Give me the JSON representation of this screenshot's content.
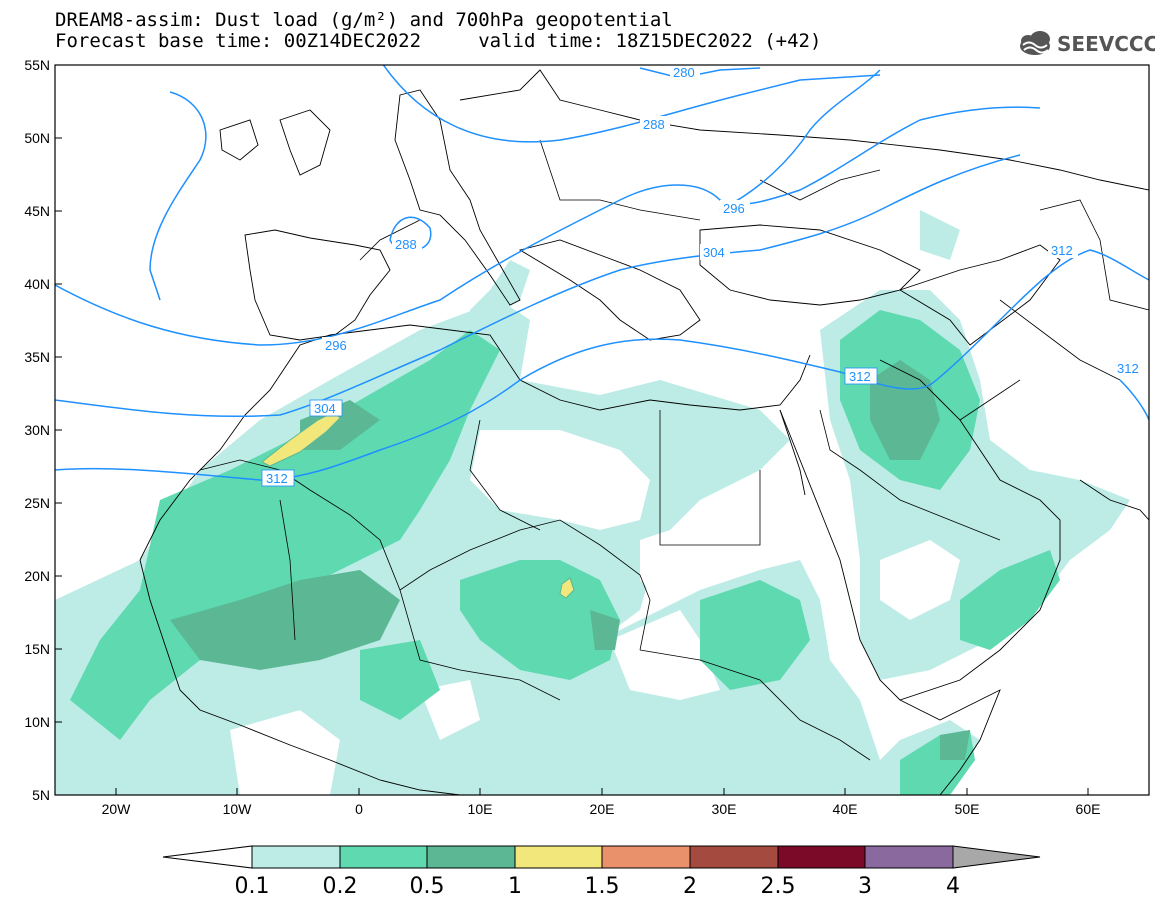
{
  "header": {
    "title_line1": "DREAM8-assim: Dust load (g/m²) and 700hPa geopotential",
    "title_line2": "Forecast base time: 00Z14DEC2022     valid time: 18Z15DEC2022 (+42)",
    "logo_text": "SEEVCCC"
  },
  "axes": {
    "lat_ticks": [
      "55N",
      "50N",
      "45N",
      "40N",
      "35N",
      "30N",
      "25N",
      "20N",
      "15N",
      "10N",
      "5N"
    ],
    "lon_ticks": [
      "20W",
      "10W",
      "0",
      "10E",
      "20E",
      "30E",
      "40E",
      "50E",
      "60E"
    ]
  },
  "contours": {
    "color": "#1e90ff",
    "labels": [
      "280",
      "288",
      "288",
      "296",
      "296",
      "304",
      "304",
      "312",
      "312",
      "312",
      "312"
    ]
  },
  "colorbar": {
    "labels": [
      "0.1",
      "0.2",
      "0.5",
      "1",
      "1.5",
      "2",
      "2.5",
      "3",
      "4"
    ],
    "colors": [
      "#ffffff",
      "#bdece6",
      "#5ed9b0",
      "#5cb894",
      "#f2e77a",
      "#e8916a",
      "#a44a3e",
      "#7a0a28",
      "#8a6a9e",
      "#a8a8a8"
    ]
  }
}
